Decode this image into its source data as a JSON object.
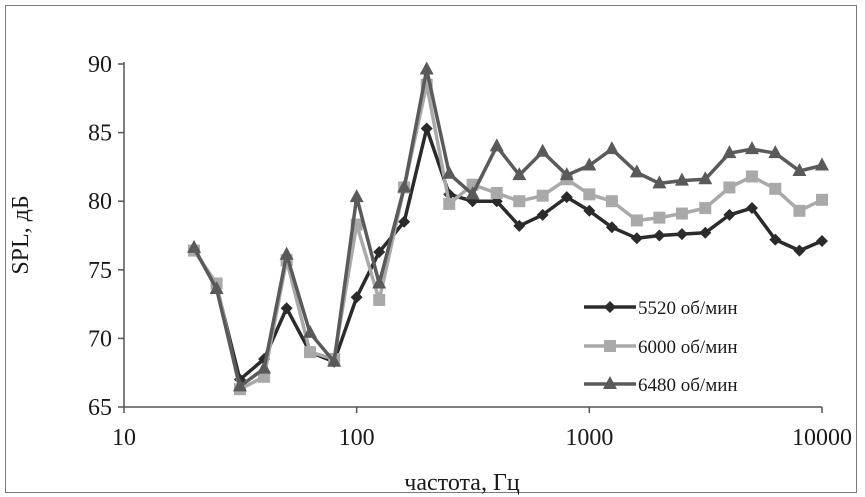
{
  "chart_data": {
    "type": "line",
    "xscale": "log",
    "xlabel": "частота, Гц",
    "ylabel": "SPL, дБ",
    "xlim": [
      10,
      10000
    ],
    "ylim": [
      65,
      90
    ],
    "xticks": [
      10,
      100,
      1000,
      10000
    ],
    "xtick_labels": [
      "10",
      "100",
      "1000",
      "10000"
    ],
    "yticks": [
      65,
      70,
      75,
      80,
      85,
      90
    ],
    "ytick_labels": [
      "65",
      "70",
      "75",
      "80",
      "85",
      "90"
    ],
    "grid": false,
    "legend_position": "bottom-right",
    "x": [
      20,
      25,
      31.5,
      40,
      50,
      63,
      80,
      100,
      125,
      160,
      200,
      250,
      315,
      400,
      500,
      630,
      800,
      1000,
      1250,
      1600,
      2000,
      2500,
      3150,
      4000,
      5000,
      6300,
      8000,
      10000
    ],
    "series": [
      {
        "name": "5520  об/мин",
        "marker": "diamond",
        "color": "#2b2b2b",
        "values": [
          76.5,
          73.8,
          67.0,
          68.5,
          72.2,
          69.0,
          68.3,
          73.0,
          76.3,
          78.5,
          85.3,
          80.5,
          80.0,
          80.0,
          78.2,
          79.0,
          80.3,
          79.3,
          78.1,
          77.3,
          77.5,
          77.6,
          77.7,
          79.0,
          79.5,
          77.2,
          76.4,
          77.1
        ]
      },
      {
        "name": "6000  об/мин",
        "marker": "square",
        "color": "#a9a9a9",
        "values": [
          76.4,
          74.0,
          66.3,
          67.2,
          75.7,
          69.0,
          68.5,
          78.3,
          72.8,
          81.0,
          88.5,
          79.8,
          81.2,
          80.6,
          80.0,
          80.4,
          81.6,
          80.5,
          80.0,
          78.6,
          78.8,
          79.1,
          79.5,
          81.0,
          81.8,
          80.9,
          79.3,
          80.1
        ]
      },
      {
        "name": "6480  об/мин",
        "marker": "triangle",
        "color": "#5a5a5a",
        "values": [
          76.6,
          73.6,
          66.5,
          67.8,
          76.1,
          70.4,
          68.3,
          80.3,
          74.0,
          81.0,
          89.6,
          82.0,
          80.5,
          84.0,
          81.9,
          83.6,
          81.9,
          82.6,
          83.8,
          82.1,
          81.3,
          81.5,
          81.6,
          83.5,
          83.8,
          83.5,
          82.2,
          82.6
        ]
      }
    ]
  }
}
